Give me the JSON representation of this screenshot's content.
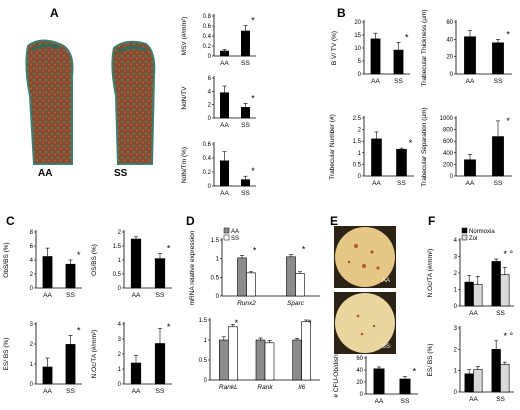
{
  "panels": {
    "A": {
      "letter": "A",
      "photo_labels": [
        "AA",
        "SS"
      ]
    },
    "B": {
      "letter": "B"
    },
    "C": {
      "letter": "C"
    },
    "D": {
      "letter": "D"
    },
    "E": {
      "letter": "E",
      "photo_labels": [
        "AA",
        "SS"
      ]
    },
    "F": {
      "letter": "F"
    }
  },
  "colors": {
    "black": "#000000",
    "dark_gray": "#404040",
    "mid_gray": "#8c8c8c",
    "light_gray": "#d9d9d9",
    "white": "#ffffff"
  },
  "chart_data": [
    {
      "id": "A1",
      "type": "bar",
      "ylabel": "MSV (#/mm²)",
      "categories": [
        "AA",
        "SS"
      ],
      "values": [
        0.1,
        0.5
      ],
      "errors": [
        0.03,
        0.11
      ],
      "ylim": [
        0,
        0.8
      ],
      "yticks": [
        "0",
        "0.2",
        "0.4",
        "0.6",
        "0.8"
      ],
      "significance": [
        null,
        "*"
      ]
    },
    {
      "id": "A2",
      "type": "bar",
      "ylabel": "NdN/TV",
      "categories": [
        "AA",
        "SS"
      ],
      "values": [
        3.8,
        1.6
      ],
      "errors": [
        1.0,
        0.6
      ],
      "ylim": [
        0,
        6
      ],
      "yticks": [
        "0",
        "2",
        "4",
        "6"
      ],
      "significance": [
        null,
        "*"
      ]
    },
    {
      "id": "A3",
      "type": "bar",
      "ylabel": "NdN/Tm (%)",
      "categories": [
        "AA",
        "SS"
      ],
      "values": [
        0.36,
        0.09
      ],
      "errors": [
        0.13,
        0.05
      ],
      "ylim": [
        0,
        0.6
      ],
      "yticks": [
        "0",
        "0.2",
        "0.4",
        "0.6"
      ],
      "significance": [
        null,
        "*"
      ]
    },
    {
      "id": "B1",
      "type": "bar",
      "ylabel": "B V/ TV (%)",
      "categories": [
        "AA",
        "SS"
      ],
      "values": [
        13.5,
        9.2
      ],
      "errors": [
        2.2,
        3.0
      ],
      "ylim": [
        0,
        20
      ],
      "yticks": [
        "0",
        "5",
        "10",
        "15",
        "20"
      ],
      "significance": [
        null,
        "*"
      ]
    },
    {
      "id": "B2",
      "type": "bar",
      "ylabel": "Trabecular Thickness (µm)",
      "categories": [
        "AA",
        "SS"
      ],
      "values": [
        43,
        36
      ],
      "errors": [
        7,
        4
      ],
      "ylim": [
        0,
        60
      ],
      "yticks": [
        "0",
        "20",
        "40",
        "60"
      ],
      "significance": [
        null,
        "*"
      ]
    },
    {
      "id": "B3",
      "type": "bar",
      "ylabel": "Trabecular Number (#)",
      "categories": [
        "AA",
        "SS"
      ],
      "values": [
        1.6,
        1.15
      ],
      "errors": [
        0.3,
        0.05
      ],
      "ylim": [
        0,
        2.5
      ],
      "yticks": [
        "0",
        "0.5",
        "1",
        "1.5",
        "2",
        "2.5"
      ],
      "significance": [
        null,
        "*"
      ]
    },
    {
      "id": "B4",
      "type": "bar",
      "ylabel": "Trabecular Separation (µm)",
      "categories": [
        "AA",
        "SS"
      ],
      "values": [
        280,
        680
      ],
      "errors": [
        90,
        270
      ],
      "ylim": [
        0,
        1000
      ],
      "yticks": [
        "0",
        "200",
        "400",
        "600",
        "800",
        "1000"
      ],
      "significance": [
        null,
        "*"
      ]
    },
    {
      "id": "C1",
      "type": "bar",
      "ylabel": "ObS/BS (%)",
      "categories": [
        "AA",
        "SS"
      ],
      "values": [
        4.5,
        3.4
      ],
      "errors": [
        1.2,
        0.6
      ],
      "ylim": [
        0,
        8
      ],
      "yticks": [
        "0",
        "2",
        "4",
        "6",
        "8"
      ],
      "significance": [
        null,
        "*"
      ]
    },
    {
      "id": "C2",
      "type": "bar",
      "ylabel": "OS/BS (%)",
      "categories": [
        "AA",
        "SS"
      ],
      "values": [
        1.75,
        1.05
      ],
      "errors": [
        0.08,
        0.18
      ],
      "ylim": [
        0,
        2
      ],
      "yticks": [
        "0",
        "0.5",
        "1",
        "1.5",
        "2"
      ],
      "significance": [
        null,
        "*"
      ]
    },
    {
      "id": "C3",
      "type": "bar",
      "ylabel": "ES/ BS (%)",
      "categories": [
        "AA",
        "SS"
      ],
      "values": [
        0.85,
        1.98
      ],
      "errors": [
        0.45,
        0.45
      ],
      "ylim": [
        0,
        3
      ],
      "yticks": [
        "0",
        "1",
        "2",
        "3"
      ],
      "significance": [
        null,
        "*"
      ]
    },
    {
      "id": "C4",
      "type": "bar",
      "ylabel": "N.Oc/TA (#/mm²)",
      "categories": [
        "AA",
        "SS"
      ],
      "values": [
        1.4,
        2.7
      ],
      "errors": [
        0.5,
        1.0
      ],
      "ylim": [
        0,
        4
      ],
      "yticks": [
        "0",
        "1",
        "2",
        "3",
        "4"
      ],
      "significance": [
        null,
        "*"
      ]
    },
    {
      "id": "D1",
      "type": "bar",
      "ylabel": "mRNA relative expression",
      "categories": [
        "Runx2",
        "Sparc"
      ],
      "series": [
        {
          "name": "AA",
          "values": [
            1.02,
            1.05
          ],
          "errors": [
            0.07,
            0.06
          ]
        },
        {
          "name": "SS",
          "values": [
            0.62,
            0.6
          ],
          "errors": [
            0.03,
            0.05
          ]
        }
      ],
      "ylim": [
        0,
        1.5
      ],
      "yticks": [
        "0",
        "0.5",
        "1",
        "1.5"
      ],
      "significance": [
        "*",
        "*"
      ]
    },
    {
      "id": "D2",
      "type": "bar",
      "ylabel": "",
      "categories": [
        "RankL",
        "Rank",
        "Il6"
      ],
      "series": [
        {
          "name": "AA",
          "values": [
            1.0,
            1.0,
            1.0
          ],
          "errors": [
            0.08,
            0.05,
            0.04
          ]
        },
        {
          "name": "SS",
          "values": [
            1.33,
            0.93,
            1.46
          ],
          "errors": [
            0.06,
            0.06,
            0.04
          ]
        }
      ],
      "ylim": [
        0,
        1.5
      ],
      "yticks": [
        "0",
        "0.5",
        "1",
        "1.5"
      ],
      "significance": [
        "*",
        null,
        "*"
      ]
    },
    {
      "id": "E1",
      "type": "bar",
      "ylabel": "# CFU-Ob/dish",
      "categories": [
        "AA",
        "SS"
      ],
      "values": [
        42,
        25
      ],
      "errors": [
        3,
        4
      ],
      "ylim": [
        0,
        60
      ],
      "yticks": [
        "0",
        "20",
        "40",
        "60"
      ],
      "significance": [
        null,
        "*"
      ]
    },
    {
      "id": "F1",
      "type": "bar",
      "ylabel": "N.Oc/TA (#/mm²)",
      "categories": [
        "AA",
        "SS"
      ],
      "series": [
        {
          "name": "Normoxia",
          "values": [
            1.45,
            2.7
          ],
          "errors": [
            0.4,
            0.15
          ]
        },
        {
          "name": "Zol",
          "values": [
            1.3,
            1.9
          ],
          "errors": [
            0.5,
            0.45
          ]
        }
      ],
      "ylim": [
        0,
        4
      ],
      "yticks": [
        "0",
        "1",
        "2",
        "3",
        "4"
      ],
      "significance": [
        null,
        "* °"
      ]
    },
    {
      "id": "F2",
      "type": "bar",
      "ylabel": "ES/ BS (%)",
      "categories": [
        "AA",
        "SS"
      ],
      "series": [
        {
          "name": "Normoxia",
          "values": [
            0.85,
            2.0
          ],
          "errors": [
            0.2,
            0.4
          ]
        },
        {
          "name": "Zol",
          "values": [
            1.05,
            1.3
          ],
          "errors": [
            0.15,
            0.1
          ]
        }
      ],
      "ylim": [
        0,
        3
      ],
      "yticks": [
        "0",
        "1",
        "2",
        "3"
      ],
      "significance": [
        null,
        "* °"
      ]
    }
  ]
}
